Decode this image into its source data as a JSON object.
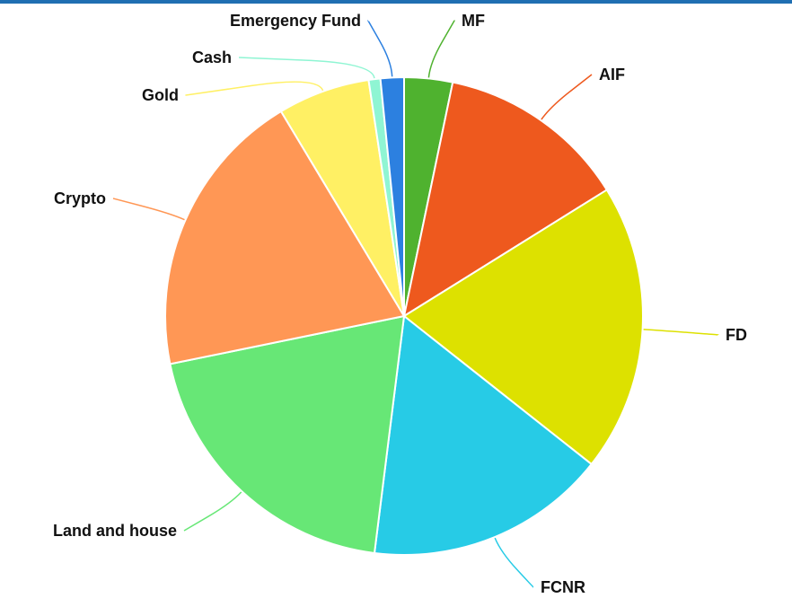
{
  "theme": {
    "top_bar_color": "#1f6fb2"
  },
  "chart_data": {
    "type": "pie",
    "title": "",
    "start_angle_deg": 0,
    "categories": [
      "MF",
      "AIF",
      "FD",
      "FCNR",
      "Land and house",
      "Crypto",
      "Gold",
      "Cash",
      "Emergency Fund"
    ],
    "values": [
      3.3,
      13.0,
      19.7,
      16.5,
      20.0,
      19.8,
      6.3,
      0.8,
      1.6
    ],
    "colors": [
      "#4fb22f",
      "#ee591e",
      "#dde100",
      "#27cbe6",
      "#67e776",
      "#ff9755",
      "#fff064",
      "#8ff5d3",
      "#2c80e0"
    ]
  }
}
